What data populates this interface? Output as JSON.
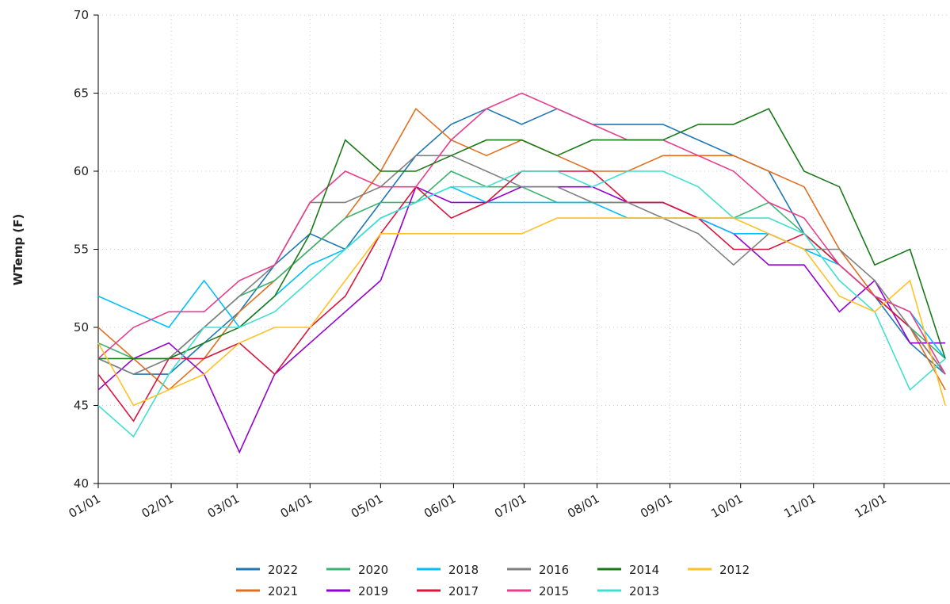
{
  "chart_data": {
    "type": "line",
    "ylabel": "WTemp (F)",
    "x": [
      1,
      16,
      31,
      46,
      61,
      76,
      91,
      106,
      121,
      136,
      151,
      166,
      181,
      196,
      211,
      226,
      241,
      256,
      271,
      286,
      301,
      316,
      331,
      346,
      361
    ],
    "xlim": [
      1,
      363
    ],
    "xticks": [
      {
        "value": 1,
        "label": "01/01"
      },
      {
        "value": 32,
        "label": "02/01"
      },
      {
        "value": 60,
        "label": "03/01"
      },
      {
        "value": 91,
        "label": "04/01"
      },
      {
        "value": 121,
        "label": "05/01"
      },
      {
        "value": 152,
        "label": "06/01"
      },
      {
        "value": 182,
        "label": "07/01"
      },
      {
        "value": 213,
        "label": "08/01"
      },
      {
        "value": 244,
        "label": "09/01"
      },
      {
        "value": 274,
        "label": "10/01"
      },
      {
        "value": 305,
        "label": "11/01"
      },
      {
        "value": 335,
        "label": "12/01"
      }
    ],
    "ylim": [
      40,
      70
    ],
    "yticks": [
      40,
      45,
      50,
      55,
      60,
      65,
      70
    ],
    "grid": true,
    "series": [
      {
        "name": "2022",
        "color": "#1f77b4",
        "values": [
          48,
          47,
          47,
          49,
          51,
          54,
          56,
          55,
          58,
          61,
          63,
          64,
          63,
          64,
          63,
          63,
          63,
          62,
          61,
          60,
          56,
          54,
          52,
          49,
          47
        ]
      },
      {
        "name": "2021",
        "color": "#e07020",
        "values": [
          50,
          48,
          46,
          48,
          51,
          53,
          55,
          57,
          60,
          64,
          62,
          61,
          62,
          61,
          60,
          60,
          61,
          61,
          61,
          60,
          59,
          55,
          52,
          50,
          46
        ]
      },
      {
        "name": "2020",
        "color": "#3cb371",
        "values": [
          49,
          48,
          48,
          50,
          52,
          53,
          55,
          57,
          58,
          58,
          60,
          59,
          59,
          58,
          58,
          58,
          58,
          57,
          57,
          58,
          56,
          54,
          52,
          50,
          48
        ]
      },
      {
        "name": "2019",
        "color": "#9400d3",
        "values": [
          46,
          48,
          49,
          47,
          42,
          47,
          49,
          51,
          53,
          59,
          58,
          58,
          59,
          59,
          59,
          58,
          58,
          57,
          56,
          54,
          54,
          51,
          53,
          49,
          49
        ]
      },
      {
        "name": "2018",
        "color": "#00bfff",
        "values": [
          52,
          51,
          50,
          53,
          50,
          52,
          54,
          55,
          57,
          58,
          59,
          58,
          58,
          58,
          58,
          57,
          57,
          57,
          56,
          56,
          55,
          54,
          52,
          51,
          48
        ]
      },
      {
        "name": "2017",
        "color": "#dc143c",
        "values": [
          47,
          44,
          48,
          48,
          49,
          47,
          50,
          52,
          56,
          59,
          57,
          58,
          60,
          60,
          60,
          58,
          58,
          57,
          55,
          55,
          56,
          54,
          52,
          50,
          47
        ]
      },
      {
        "name": "2016",
        "color": "#808080",
        "values": [
          48,
          47,
          48,
          50,
          52,
          54,
          58,
          58,
          59,
          61,
          61,
          60,
          59,
          59,
          58,
          58,
          57,
          56,
          54,
          56,
          55,
          55,
          53,
          50,
          47
        ]
      },
      {
        "name": "2015",
        "color": "#e83e8c",
        "values": [
          48,
          50,
          51,
          51,
          53,
          54,
          58,
          60,
          59,
          59,
          62,
          64,
          65,
          64,
          63,
          62,
          62,
          61,
          60,
          58,
          57,
          54,
          52,
          51,
          47
        ]
      },
      {
        "name": "2014",
        "color": "#1a7a1a",
        "values": [
          48,
          48,
          48,
          49,
          50,
          52,
          56,
          62,
          60,
          60,
          61,
          62,
          62,
          61,
          62,
          62,
          62,
          63,
          63,
          64,
          60,
          59,
          54,
          55,
          48
        ]
      },
      {
        "name": "2013",
        "color": "#40e0d0",
        "values": [
          45,
          43,
          47,
          50,
          50,
          51,
          53,
          55,
          57,
          58,
          59,
          59,
          60,
          60,
          59,
          60,
          60,
          59,
          57,
          57,
          56,
          53,
          51,
          46,
          48
        ]
      },
      {
        "name": "2012",
        "color": "#ffc125",
        "values": [
          49,
          45,
          46,
          47,
          49,
          50,
          50,
          53,
          56,
          56,
          56,
          56,
          56,
          57,
          57,
          57,
          57,
          57,
          57,
          56,
          55,
          52,
          51,
          53,
          45
        ]
      }
    ]
  }
}
